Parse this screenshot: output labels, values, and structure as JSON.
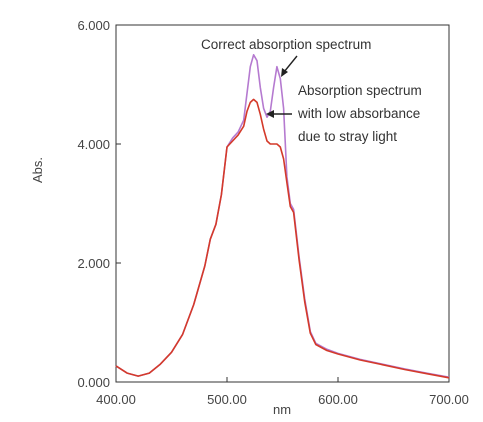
{
  "chart_data": {
    "type": "line",
    "xlabel": "nm",
    "ylabel": "Abs.",
    "xlim": [
      400,
      700
    ],
    "ylim": [
      0,
      6
    ],
    "x_ticks": [
      "400.00",
      "500.00",
      "600.00",
      "700.00"
    ],
    "y_ticks": [
      "0.000",
      "2.000",
      "4.000",
      "6.000"
    ],
    "grid": false,
    "series": [
      {
        "name": "Correct absorption spectrum",
        "color": "#b57ad0",
        "x": [
          400,
          410,
          420,
          430,
          440,
          450,
          460,
          470,
          480,
          485,
          490,
          495,
          500,
          505,
          510,
          515,
          518,
          521,
          524,
          527,
          530,
          533,
          536,
          539,
          542,
          545,
          548,
          551,
          554,
          557,
          560,
          565,
          570,
          575,
          580,
          590,
          600,
          620,
          640,
          660,
          680,
          700
        ],
        "y": [
          0.27,
          0.15,
          0.1,
          0.15,
          0.3,
          0.5,
          0.8,
          1.3,
          1.95,
          2.4,
          2.65,
          3.15,
          3.95,
          4.1,
          4.2,
          4.4,
          4.85,
          5.3,
          5.5,
          5.4,
          4.95,
          4.6,
          4.45,
          4.55,
          4.95,
          5.3,
          5.1,
          4.6,
          3.45,
          3.0,
          2.9,
          2.1,
          1.4,
          0.85,
          0.65,
          0.55,
          0.48,
          0.38,
          0.3,
          0.22,
          0.15,
          0.08
        ]
      },
      {
        "name": "Absorption spectrum with low absorbance due to stray light",
        "color": "#d43a2a",
        "x": [
          400,
          410,
          420,
          430,
          440,
          450,
          460,
          470,
          480,
          485,
          490,
          495,
          500,
          505,
          510,
          515,
          518,
          521,
          524,
          527,
          530,
          533,
          536,
          539,
          542,
          545,
          548,
          551,
          554,
          557,
          560,
          565,
          570,
          575,
          580,
          590,
          600,
          620,
          640,
          660,
          680,
          700
        ],
        "y": [
          0.27,
          0.15,
          0.1,
          0.15,
          0.3,
          0.5,
          0.8,
          1.3,
          1.95,
          2.4,
          2.65,
          3.15,
          3.95,
          4.05,
          4.15,
          4.3,
          4.55,
          4.7,
          4.75,
          4.7,
          4.5,
          4.25,
          4.05,
          4.0,
          4.0,
          4.0,
          3.95,
          3.75,
          3.35,
          2.95,
          2.85,
          2.05,
          1.35,
          0.82,
          0.63,
          0.53,
          0.47,
          0.37,
          0.29,
          0.21,
          0.14,
          0.07
        ]
      }
    ],
    "annotations": [
      {
        "text": "Correct absorption spectrum"
      },
      {
        "lines": [
          "Absorption spectrum",
          "with low absorbance",
          "due to stray light"
        ]
      }
    ]
  }
}
